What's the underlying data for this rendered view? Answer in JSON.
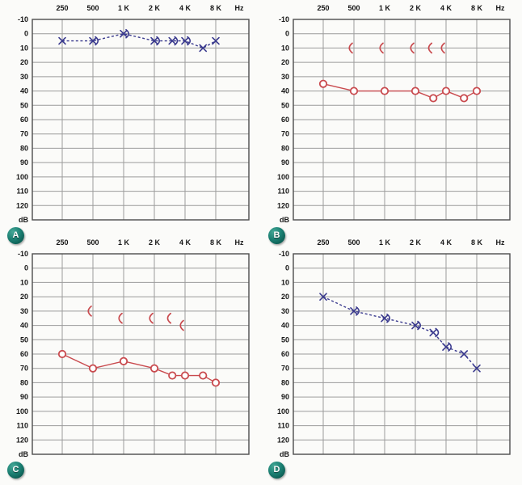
{
  "page": {
    "background": "#fbfbf9"
  },
  "style": {
    "grid_color": "#9b9b9b",
    "border_color": "#4d4d4d",
    "label_color": "#151515",
    "badge_bg": "#15796d",
    "badge_text_color": "#ffffff",
    "blue": "#3a3a8e",
    "red": "#c94a4e",
    "marker_fill": "#ffffff"
  },
  "axis": {
    "hz_label": "Hz",
    "db_label": "dB",
    "x_ticks": [
      {
        "label": "250",
        "freq": 250
      },
      {
        "label": "500",
        "freq": 500
      },
      {
        "label": "1 K",
        "freq": 1000
      },
      {
        "label": "2 K",
        "freq": 2000
      },
      {
        "label": "4 K",
        "freq": 4000
      },
      {
        "label": "8 K",
        "freq": 8000
      }
    ],
    "y_ticks": [
      -10,
      0,
      10,
      20,
      30,
      40,
      50,
      60,
      70,
      80,
      90,
      100,
      110,
      120
    ]
  },
  "chart_data": [
    {
      "id": "A",
      "type": "line",
      "title": "Audiogram A",
      "xlabel": "Hz",
      "ylabel": "dB",
      "x_scale": "log-octave",
      "ylim": [
        -10,
        130
      ],
      "grid": true,
      "series": [
        {
          "name": "air-conduction-x",
          "marker": "x",
          "line": "dashed",
          "color": "blue",
          "points": [
            [
              250,
              5
            ],
            [
              500,
              5
            ],
            [
              1000,
              0
            ],
            [
              2000,
              5
            ],
            [
              3000,
              5
            ],
            [
              4000,
              5
            ],
            [
              6000,
              10
            ],
            [
              8000,
              5
            ]
          ]
        },
        {
          "name": "bone-conduction-right-bracket",
          "marker": "bracket-right",
          "line": "none",
          "color": "blue",
          "points": [
            [
              500,
              5
            ],
            [
              1000,
              0
            ],
            [
              2000,
              5
            ],
            [
              3000,
              5
            ],
            [
              4000,
              5
            ]
          ]
        }
      ]
    },
    {
      "id": "B",
      "type": "line",
      "title": "Audiogram B",
      "xlabel": "Hz",
      "ylabel": "dB",
      "x_scale": "log-octave",
      "ylim": [
        -10,
        130
      ],
      "grid": true,
      "series": [
        {
          "name": "air-conduction-circle",
          "marker": "o",
          "line": "solid",
          "color": "red",
          "points": [
            [
              250,
              35
            ],
            [
              500,
              40
            ],
            [
              1000,
              40
            ],
            [
              2000,
              40
            ],
            [
              3000,
              45
            ],
            [
              4000,
              40
            ],
            [
              6000,
              45
            ],
            [
              8000,
              40
            ]
          ]
        },
        {
          "name": "bone-conduction-left-bracket",
          "marker": "bracket-left",
          "line": "none",
          "color": "red",
          "points": [
            [
              500,
              10
            ],
            [
              1000,
              10
            ],
            [
              2000,
              10
            ],
            [
              3000,
              10
            ],
            [
              4000,
              10
            ]
          ]
        }
      ]
    },
    {
      "id": "C",
      "type": "line",
      "title": "Audiogram C",
      "xlabel": "Hz",
      "ylabel": "dB",
      "x_scale": "log-octave",
      "ylim": [
        -10,
        130
      ],
      "grid": true,
      "series": [
        {
          "name": "air-conduction-circle",
          "marker": "o",
          "line": "solid",
          "color": "red",
          "points": [
            [
              250,
              60
            ],
            [
              500,
              70
            ],
            [
              1000,
              65
            ],
            [
              2000,
              70
            ],
            [
              3000,
              75
            ],
            [
              4000,
              75
            ],
            [
              6000,
              75
            ],
            [
              8000,
              80
            ]
          ]
        },
        {
          "name": "bone-conduction-left-bracket",
          "marker": "bracket-left",
          "line": "none",
          "color": "red",
          "points": [
            [
              500,
              30
            ],
            [
              1000,
              35
            ],
            [
              2000,
              35
            ],
            [
              3000,
              35
            ],
            [
              4000,
              40
            ]
          ]
        }
      ]
    },
    {
      "id": "D",
      "type": "line",
      "title": "Audiogram D",
      "xlabel": "Hz",
      "ylabel": "dB",
      "x_scale": "log-octave",
      "ylim": [
        -10,
        130
      ],
      "grid": true,
      "series": [
        {
          "name": "air-conduction-x",
          "marker": "x",
          "line": "dashed",
          "color": "blue",
          "points": [
            [
              250,
              20
            ],
            [
              500,
              30
            ],
            [
              1000,
              35
            ],
            [
              2000,
              40
            ],
            [
              3000,
              45
            ],
            [
              4000,
              55
            ],
            [
              6000,
              60
            ],
            [
              8000,
              70
            ]
          ]
        },
        {
          "name": "bone-conduction-right-bracket",
          "marker": "bracket-right",
          "line": "none",
          "color": "blue",
          "points": [
            [
              500,
              30
            ],
            [
              1000,
              35
            ],
            [
              2000,
              40
            ],
            [
              3000,
              45
            ],
            [
              4000,
              55
            ]
          ]
        }
      ]
    }
  ]
}
